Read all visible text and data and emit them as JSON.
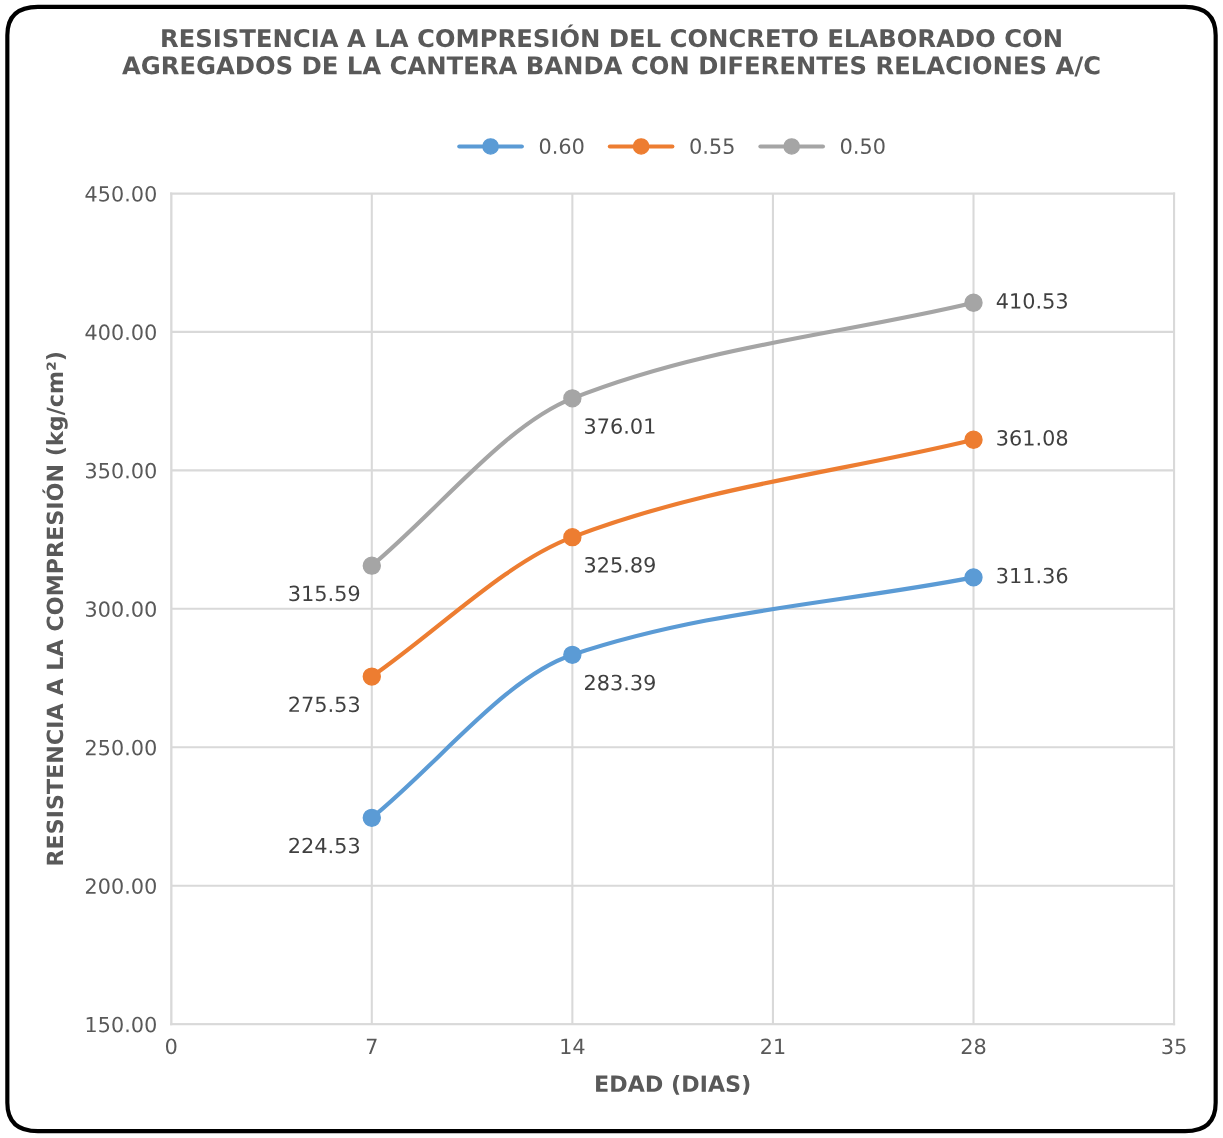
{
  "chart_data": {
    "type": "line",
    "title": "RESISTENCIA A LA COMPRESIÓN DEL CONCRETO ELABORADO CON\nAGREGADOS DE LA CANTERA BANDA CON DIFERENTES RELACIONES A/C",
    "xlabel": "EDAD (DIAS)",
    "ylabel": "RESISTENCIA A LA COMPRESIÓN (kg/cm²)",
    "x": [
      7,
      14,
      28
    ],
    "series": [
      {
        "name": "0.60",
        "color": "#5b9bd5",
        "values": [
          224.53,
          283.39,
          311.36
        ]
      },
      {
        "name": "0.55",
        "color": "#ed7d31",
        "values": [
          275.53,
          325.89,
          361.08
        ]
      },
      {
        "name": "0.50",
        "color": "#a5a5a5",
        "values": [
          315.59,
          376.01,
          410.53
        ]
      }
    ],
    "xlim": [
      0,
      35
    ],
    "xticks": [
      0,
      7,
      14,
      21,
      28,
      35
    ],
    "ylim": [
      150,
      450
    ],
    "yticks": [
      {
        "value": 150,
        "label": "150.00"
      },
      {
        "value": 200,
        "label": "200.00"
      },
      {
        "value": 250,
        "label": "250.00"
      },
      {
        "value": 300,
        "label": "300.00"
      },
      {
        "value": 350,
        "label": "350.00"
      },
      {
        "value": 400,
        "label": "400.00"
      },
      {
        "value": 450,
        "label": "450.00"
      }
    ],
    "grid": true,
    "legend": "top",
    "marker": "circle",
    "line_style": "solid",
    "data_labels": true
  }
}
